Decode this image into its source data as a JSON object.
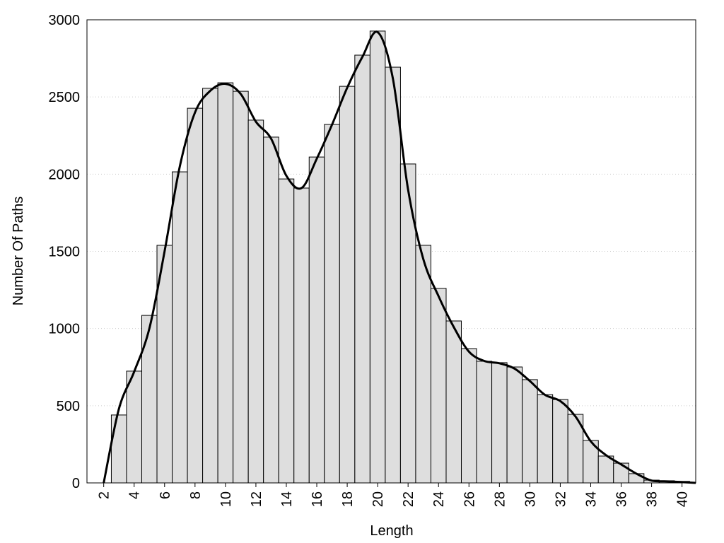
{
  "chart_data": {
    "type": "histogram",
    "xlabel": "Length",
    "ylabel": "Number Of Paths",
    "bins": [
      2.5,
      3.5,
      4.5,
      5.5,
      6.5,
      7.5,
      8.5,
      9.5,
      10.5,
      11.5,
      12.5,
      13.5,
      14.5,
      15.5,
      16.5,
      17.5,
      18.5,
      19.5,
      20.5,
      21.5,
      22.5,
      23.5,
      24.5,
      25.5,
      26.5,
      27.5,
      28.5,
      29.5,
      30.5,
      31.5,
      32.5,
      33.5,
      34.5,
      35.5,
      36.5,
      37.5,
      38.5,
      39.5,
      40.5
    ],
    "values": [
      440,
      724,
      1085,
      1539,
      2015,
      2427,
      2556,
      2592,
      2537,
      2350,
      2240,
      1969,
      1910,
      2111,
      2322,
      2569,
      2771,
      2927,
      2693,
      2066,
      1539,
      1260,
      1049,
      870,
      788,
      779,
      751,
      669,
      572,
      540,
      444,
      275,
      174,
      128,
      60,
      18,
      14,
      10
    ],
    "color": "#dedede",
    "line": {
      "color": "#000000",
      "x": [
        2,
        3,
        4,
        5,
        6,
        7,
        8,
        9,
        10,
        11,
        12,
        13,
        14,
        15,
        16,
        17,
        18,
        19,
        20,
        21,
        22,
        23,
        24,
        25,
        26,
        27,
        28,
        29,
        30,
        31,
        32,
        33,
        34,
        35,
        36,
        37,
        38,
        39,
        40,
        40.9
      ],
      "values": [
        0,
        480,
        720,
        1000,
        1500,
        2050,
        2400,
        2540,
        2585,
        2520,
        2340,
        2230,
        1990,
        1910,
        2100,
        2320,
        2560,
        2760,
        2920,
        2620,
        1900,
        1450,
        1210,
        1010,
        850,
        790,
        775,
        740,
        660,
        570,
        530,
        430,
        270,
        180,
        120,
        60,
        15,
        10,
        5,
        0
      ]
    },
    "xlim": [
      0.9,
      40.9
    ],
    "ylim": [
      0,
      3000
    ],
    "xticks": [
      2,
      4,
      6,
      8,
      10,
      12,
      14,
      16,
      18,
      20,
      22,
      24,
      26,
      28,
      30,
      32,
      34,
      36,
      38,
      40
    ],
    "yticks": [
      0,
      500,
      1000,
      1500,
      2000,
      2500,
      3000
    ],
    "grid": true
  }
}
